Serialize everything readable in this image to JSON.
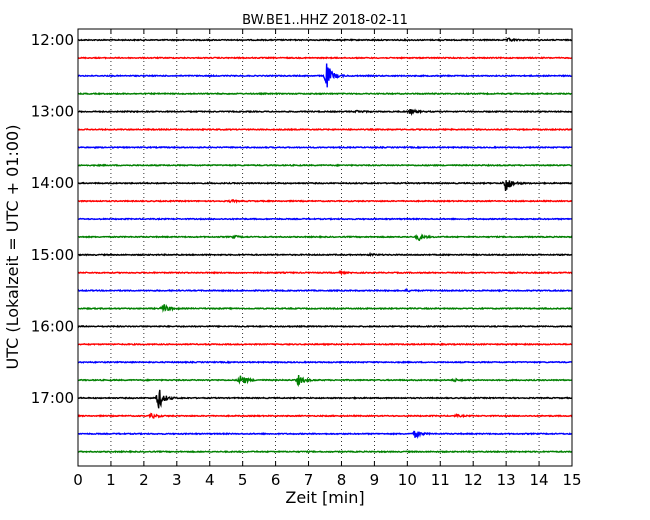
{
  "chart_data": {
    "type": "line",
    "title": "BW.BE1..HHZ 2018-02-11",
    "xlabel": "Zeit  [min]",
    "ylabel": "UTC (Lokalzeit = UTC + 01:00)",
    "xlim": [
      0,
      15
    ],
    "xticks": [
      "0",
      "1",
      "2",
      "3",
      "4",
      "5",
      "6",
      "7",
      "8",
      "9",
      "10",
      "11",
      "12",
      "13",
      "14",
      "15"
    ],
    "ytick_labels": [
      "12:00",
      "13:00",
      "14:00",
      "15:00",
      "16:00",
      "17:00"
    ],
    "grid": "vertical-dotted",
    "trace_interval_min": 15,
    "colors": [
      "#000000",
      "#ff0000",
      "#0000ff",
      "#008000"
    ],
    "traces": [
      {
        "start": "12:00",
        "events": [
          {
            "t": 13.1,
            "amp": 0.15
          }
        ]
      },
      {
        "start": "12:15",
        "events": []
      },
      {
        "start": "12:30",
        "events": [
          {
            "t": 7.55,
            "amp": 1.3
          }
        ]
      },
      {
        "start": "12:45",
        "events": []
      },
      {
        "start": "13:00",
        "events": [
          {
            "t": 8.5,
            "amp": 0.12
          },
          {
            "t": 10.1,
            "amp": 0.25
          }
        ]
      },
      {
        "start": "13:15",
        "events": []
      },
      {
        "start": "13:30",
        "events": []
      },
      {
        "start": "13:45",
        "events": []
      },
      {
        "start": "14:00",
        "events": [
          {
            "t": 13.0,
            "amp": 0.9
          }
        ]
      },
      {
        "start": "14:15",
        "events": [
          {
            "t": 4.65,
            "amp": 0.1
          }
        ]
      },
      {
        "start": "14:30",
        "events": []
      },
      {
        "start": "14:45",
        "events": [
          {
            "t": 4.75,
            "amp": 0.12
          },
          {
            "t": 10.35,
            "amp": 0.35
          }
        ]
      },
      {
        "start": "15:00",
        "events": [
          {
            "t": 8.9,
            "amp": 0.08
          }
        ]
      },
      {
        "start": "15:15",
        "events": [
          {
            "t": 7.95,
            "amp": 0.08
          }
        ]
      },
      {
        "start": "15:30",
        "events": [
          {
            "t": 10.0,
            "amp": 0.08
          }
        ]
      },
      {
        "start": "15:45",
        "events": [
          {
            "t": 2.6,
            "amp": 0.45
          }
        ]
      },
      {
        "start": "16:00",
        "events": []
      },
      {
        "start": "16:15",
        "events": []
      },
      {
        "start": "16:30",
        "events": []
      },
      {
        "start": "16:45",
        "events": [
          {
            "t": 4.95,
            "amp": 0.6
          },
          {
            "t": 6.7,
            "amp": 0.5
          },
          {
            "t": 11.45,
            "amp": 0.12
          }
        ]
      },
      {
        "start": "17:00",
        "events": [
          {
            "t": 2.45,
            "amp": 1.1
          }
        ]
      },
      {
        "start": "17:15",
        "events": [
          {
            "t": 2.25,
            "amp": 0.25
          },
          {
            "t": 11.5,
            "amp": 0.1
          }
        ]
      },
      {
        "start": "17:30",
        "events": [
          {
            "t": 10.25,
            "amp": 0.4
          }
        ]
      },
      {
        "start": "17:45",
        "events": []
      }
    ]
  }
}
